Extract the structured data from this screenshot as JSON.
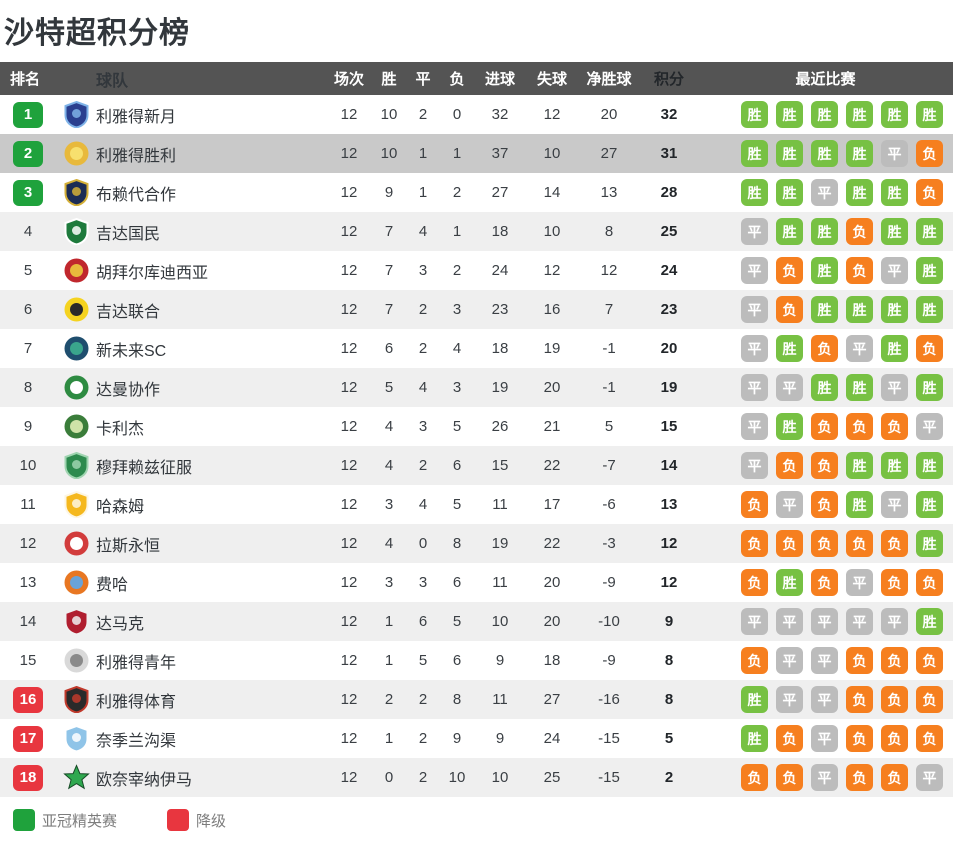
{
  "title": "沙特超积分榜",
  "header": {
    "rank": "排名",
    "team": "球队",
    "played": "场次",
    "win": "胜",
    "draw": "平",
    "loss": "负",
    "goals_for": "进球",
    "goals_against": "失球",
    "goal_diff": "净胜球",
    "points": "积分",
    "recent": "最近比赛"
  },
  "result_colors": {
    "胜": "#77c143",
    "平": "#bcbcbc",
    "负": "#f67f1f"
  },
  "rank_colors": {
    "green": "#1fa23c",
    "red": "#e8363f"
  },
  "legend": [
    {
      "label": "亚冠精英赛",
      "color": "#1fa23c"
    },
    {
      "label": "降级",
      "color": "#e8363f"
    }
  ],
  "rows": [
    {
      "rank": 1,
      "rank_color": "green",
      "team": "利雅得新月",
      "played": 12,
      "win": 10,
      "draw": 2,
      "loss": 0,
      "gf": 32,
      "ga": 12,
      "gd": 20,
      "pts": 32,
      "recent": [
        "胜",
        "胜",
        "胜",
        "胜",
        "胜",
        "胜"
      ],
      "highlight": false,
      "logo": {
        "shape": "shield",
        "c1": "#2a3f8f",
        "c2": "#7fb3e8"
      }
    },
    {
      "rank": 2,
      "rank_color": "green",
      "team": "利雅得胜利",
      "played": 12,
      "win": 10,
      "draw": 1,
      "loss": 1,
      "gf": 37,
      "ga": 10,
      "gd": 27,
      "pts": 31,
      "recent": [
        "胜",
        "胜",
        "胜",
        "胜",
        "平",
        "负"
      ],
      "highlight": true,
      "logo": {
        "shape": "circle",
        "c1": "#e8b93c",
        "c2": "#f7e06e"
      }
    },
    {
      "rank": 3,
      "rank_color": "green",
      "team": "布赖代合作",
      "played": 12,
      "win": 9,
      "draw": 1,
      "loss": 2,
      "gf": 27,
      "ga": 14,
      "gd": 13,
      "pts": 28,
      "recent": [
        "胜",
        "胜",
        "平",
        "胜",
        "胜",
        "负"
      ],
      "highlight": false,
      "logo": {
        "shape": "shield",
        "c1": "#1c2c55",
        "c2": "#d4af37"
      }
    },
    {
      "rank": 4,
      "rank_color": null,
      "team": "吉达国民",
      "played": 12,
      "win": 7,
      "draw": 4,
      "loss": 1,
      "gf": 18,
      "ga": 10,
      "gd": 8,
      "pts": 25,
      "recent": [
        "平",
        "胜",
        "胜",
        "负",
        "胜",
        "胜"
      ],
      "highlight": false,
      "logo": {
        "shape": "shield",
        "c1": "#1e7a3c",
        "c2": "#ffffff"
      }
    },
    {
      "rank": 5,
      "rank_color": null,
      "team": "胡拜尔库迪西亚",
      "played": 12,
      "win": 7,
      "draw": 3,
      "loss": 2,
      "gf": 24,
      "ga": 12,
      "gd": 12,
      "pts": 24,
      "recent": [
        "平",
        "负",
        "胜",
        "负",
        "平",
        "胜"
      ],
      "highlight": false,
      "logo": {
        "shape": "circle",
        "c1": "#c0272d",
        "c2": "#e8b93c"
      }
    },
    {
      "rank": 6,
      "rank_color": null,
      "team": "吉达联合",
      "played": 12,
      "win": 7,
      "draw": 2,
      "loss": 3,
      "gf": 23,
      "ga": 16,
      "gd": 7,
      "pts": 23,
      "recent": [
        "平",
        "负",
        "胜",
        "胜",
        "胜",
        "胜"
      ],
      "highlight": false,
      "logo": {
        "shape": "circle",
        "c1": "#f5d320",
        "c2": "#2a2a2a"
      }
    },
    {
      "rank": 7,
      "rank_color": null,
      "team": "新未来SC",
      "played": 12,
      "win": 6,
      "draw": 2,
      "loss": 4,
      "gf": 18,
      "ga": 19,
      "gd": -1,
      "pts": 20,
      "recent": [
        "平",
        "胜",
        "负",
        "平",
        "胜",
        "负"
      ],
      "highlight": false,
      "logo": {
        "shape": "circle",
        "c1": "#1f4e6e",
        "c2": "#3aa58c"
      }
    },
    {
      "rank": 8,
      "rank_color": null,
      "team": "达曼协作",
      "played": 12,
      "win": 5,
      "draw": 4,
      "loss": 3,
      "gf": 19,
      "ga": 20,
      "gd": -1,
      "pts": 19,
      "recent": [
        "平",
        "平",
        "胜",
        "胜",
        "平",
        "胜"
      ],
      "highlight": false,
      "logo": {
        "shape": "circle",
        "c1": "#2e8b42",
        "c2": "#ffffff"
      }
    },
    {
      "rank": 9,
      "rank_color": null,
      "team": "卡利杰",
      "played": 12,
      "win": 4,
      "draw": 3,
      "loss": 5,
      "gf": 26,
      "ga": 21,
      "gd": 5,
      "pts": 15,
      "recent": [
        "平",
        "胜",
        "负",
        "负",
        "负",
        "平"
      ],
      "highlight": false,
      "logo": {
        "shape": "circle",
        "c1": "#3a7d3a",
        "c2": "#cfe3a8"
      }
    },
    {
      "rank": 10,
      "rank_color": null,
      "team": "穆拜赖兹征服",
      "played": 12,
      "win": 4,
      "draw": 2,
      "loss": 6,
      "gf": 15,
      "ga": 22,
      "gd": -7,
      "pts": 14,
      "recent": [
        "平",
        "负",
        "负",
        "胜",
        "胜",
        "胜"
      ],
      "highlight": false,
      "logo": {
        "shape": "shield",
        "c1": "#2d8a4e",
        "c2": "#9fd4b0"
      }
    },
    {
      "rank": 11,
      "rank_color": null,
      "team": "哈森姆",
      "played": 12,
      "win": 3,
      "draw": 4,
      "loss": 5,
      "gf": 11,
      "ga": 17,
      "gd": -6,
      "pts": 13,
      "recent": [
        "负",
        "平",
        "负",
        "胜",
        "平",
        "胜"
      ],
      "highlight": false,
      "logo": {
        "shape": "shield",
        "c1": "#f5b81e",
        "c2": "#fdf6e3"
      }
    },
    {
      "rank": 12,
      "rank_color": null,
      "team": "拉斯永恒",
      "played": 12,
      "win": 4,
      "draw": 0,
      "loss": 8,
      "gf": 19,
      "ga": 22,
      "gd": -3,
      "pts": 12,
      "recent": [
        "负",
        "负",
        "负",
        "负",
        "负",
        "胜"
      ],
      "highlight": false,
      "logo": {
        "shape": "circle",
        "c1": "#d23c3c",
        "c2": "#ffffff"
      }
    },
    {
      "rank": 13,
      "rank_color": null,
      "team": "费哈",
      "played": 12,
      "win": 3,
      "draw": 3,
      "loss": 6,
      "gf": 11,
      "ga": 20,
      "gd": -9,
      "pts": 12,
      "recent": [
        "负",
        "胜",
        "负",
        "平",
        "负",
        "负"
      ],
      "highlight": false,
      "logo": {
        "shape": "circle",
        "c1": "#e87722",
        "c2": "#6aa3d8"
      }
    },
    {
      "rank": 14,
      "rank_color": null,
      "team": "达马克",
      "played": 12,
      "win": 1,
      "draw": 6,
      "loss": 5,
      "gf": 10,
      "ga": 20,
      "gd": -10,
      "pts": 9,
      "recent": [
        "平",
        "平",
        "平",
        "平",
        "平",
        "胜"
      ],
      "highlight": false,
      "logo": {
        "shape": "shield",
        "c1": "#b01e2f",
        "c2": "#f0f0f0"
      }
    },
    {
      "rank": 15,
      "rank_color": null,
      "team": "利雅得青年",
      "played": 12,
      "win": 1,
      "draw": 5,
      "loss": 6,
      "gf": 9,
      "ga": 18,
      "gd": -9,
      "pts": 8,
      "recent": [
        "负",
        "平",
        "平",
        "负",
        "负",
        "负"
      ],
      "highlight": false,
      "logo": {
        "shape": "circle",
        "c1": "#d9d9d9",
        "c2": "#8a8a8a"
      }
    },
    {
      "rank": 16,
      "rank_color": "red",
      "team": "利雅得体育",
      "played": 12,
      "win": 2,
      "draw": 2,
      "loss": 8,
      "gf": 11,
      "ga": 27,
      "gd": -16,
      "pts": 8,
      "recent": [
        "胜",
        "平",
        "平",
        "负",
        "负",
        "负"
      ],
      "highlight": false,
      "logo": {
        "shape": "shield",
        "c1": "#2a2a2a",
        "c2": "#c0392b"
      }
    },
    {
      "rank": 17,
      "rank_color": "red",
      "team": "奈季兰沟渠",
      "played": 12,
      "win": 1,
      "draw": 2,
      "loss": 9,
      "gf": 9,
      "ga": 24,
      "gd": -15,
      "pts": 5,
      "recent": [
        "胜",
        "负",
        "平",
        "负",
        "负",
        "负"
      ],
      "highlight": false,
      "logo": {
        "shape": "shield",
        "c1": "#8fc4e8",
        "c2": "#ffffff"
      }
    },
    {
      "rank": 18,
      "rank_color": "red",
      "team": "欧奈宰纳伊马",
      "played": 12,
      "win": 0,
      "draw": 2,
      "loss": 10,
      "gf": 10,
      "ga": 25,
      "gd": -15,
      "pts": 2,
      "recent": [
        "负",
        "负",
        "平",
        "负",
        "负",
        "平"
      ],
      "highlight": false,
      "logo": {
        "shape": "star",
        "c1": "#2fa84f",
        "c2": "#164a26"
      }
    }
  ]
}
